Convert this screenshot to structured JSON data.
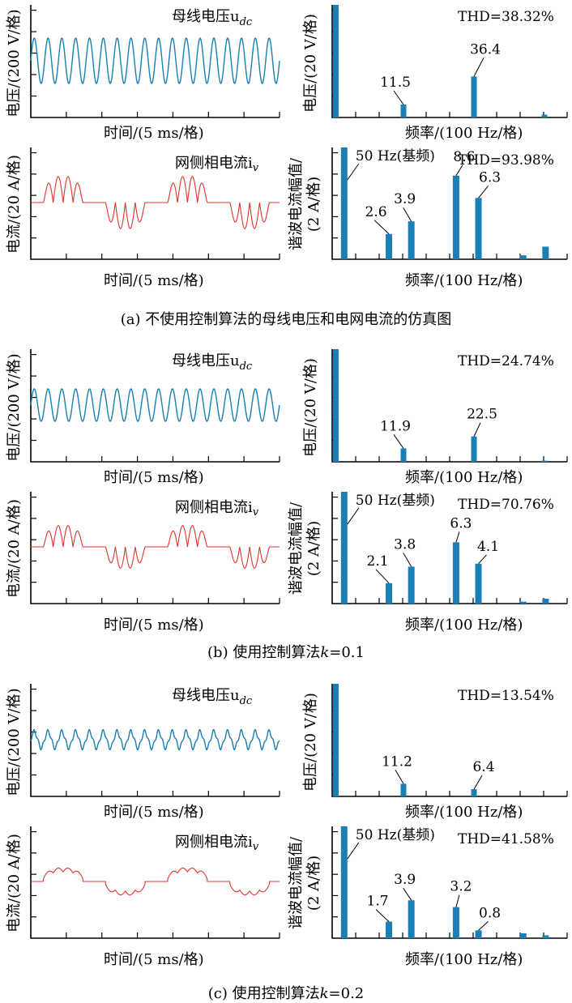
{
  "labels": {
    "time_xlabel": "时间/(5 ms/格)",
    "freq_xlabel": "频率/(100 Hz/格)",
    "voltage_title": "母线电压u",
    "voltage_title_sub": "dc",
    "current_title": "网侧相电流i",
    "current_title_sub": "v",
    "voltage_wave_ylabel": "电压/(200 V/格)",
    "current_wave_ylabel": "电流/(20 A/格)",
    "voltage_spec_ylabel": "电压/(20 V/格)",
    "current_spec_ylabel_line1": "谐波电流幅值/",
    "current_spec_ylabel_line2": "(2 A/格)",
    "fundamental_label": "50 Hz(基频)"
  },
  "captions": {
    "a": "(a) 不使用控制算法的母线电压和电网电流的仿真图",
    "b_prefix": "(b) 使用控制算法",
    "b_k": "k",
    "b_suffix": "=0.1",
    "c_prefix": "(c) 使用控制算法",
    "c_k": "k",
    "c_suffix": "=0.2"
  },
  "chart_data": [
    {
      "panel": "a-voltage-spectrum",
      "type": "bar",
      "thd": "THD=38.32%",
      "unit_per_div": 20,
      "x_unit": "100 Hz",
      "ylim": [
        0,
        100
      ],
      "bars": [
        {
          "x": 0,
          "value": 100
        },
        {
          "x": 3,
          "value": 11.5,
          "label": "11.5"
        },
        {
          "x": 6,
          "value": 36.4,
          "label": "36.4"
        },
        {
          "x": 9,
          "value": 2.5
        }
      ]
    },
    {
      "panel": "a-current-spectrum",
      "type": "bar",
      "thd": "THD=93.98%",
      "unit_per_div": 2,
      "ylim": [
        0,
        11.5
      ],
      "bars": [
        {
          "x": 0.5,
          "value": 11.5,
          "fundamental": true
        },
        {
          "x": 2.5,
          "value": 2.6,
          "label": "2.6"
        },
        {
          "x": 3.5,
          "value": 3.9,
          "label": "3.9"
        },
        {
          "x": 5.5,
          "value": 8.6,
          "label": "8.6"
        },
        {
          "x": 6.5,
          "value": 6.3,
          "label": "6.3"
        },
        {
          "x": 8.5,
          "value": 0.4
        },
        {
          "x": 9.5,
          "value": 1.3
        }
      ]
    },
    {
      "panel": "b-voltage-spectrum",
      "type": "bar",
      "thd": "THD=24.74%",
      "unit_per_div": 20,
      "ylim": [
        0,
        100
      ],
      "bars": [
        {
          "x": 0,
          "value": 100
        },
        {
          "x": 3,
          "value": 11.9,
          "label": "11.9"
        },
        {
          "x": 6,
          "value": 22.5,
          "label": "22.5"
        },
        {
          "x": 9,
          "value": 1
        }
      ]
    },
    {
      "panel": "b-current-spectrum",
      "type": "bar",
      "thd": "THD=70.76%",
      "unit_per_div": 2,
      "ylim": [
        0,
        11.5
      ],
      "bars": [
        {
          "x": 0.5,
          "value": 11.5,
          "fundamental": true
        },
        {
          "x": 2.5,
          "value": 2.1,
          "label": "2.1"
        },
        {
          "x": 3.5,
          "value": 3.8,
          "label": "3.8"
        },
        {
          "x": 5.5,
          "value": 6.3,
          "label": "6.3"
        },
        {
          "x": 6.5,
          "value": 4.1,
          "label": "4.1"
        },
        {
          "x": 8.5,
          "value": 0.2
        },
        {
          "x": 9.5,
          "value": 0.5
        }
      ]
    },
    {
      "panel": "c-voltage-spectrum",
      "type": "bar",
      "thd": "THD=13.54%",
      "unit_per_div": 20,
      "ylim": [
        0,
        100
      ],
      "bars": [
        {
          "x": 0,
          "value": 100
        },
        {
          "x": 3,
          "value": 11.2,
          "label": "11.2"
        },
        {
          "x": 6,
          "value": 6.4,
          "label": "6.4"
        }
      ]
    },
    {
      "panel": "c-current-spectrum",
      "type": "bar",
      "thd": "THD=41.58%",
      "unit_per_div": 2,
      "ylim": [
        0,
        11.5
      ],
      "bars": [
        {
          "x": 0.5,
          "value": 11.5,
          "fundamental": true
        },
        {
          "x": 2.5,
          "value": 1.7,
          "label": "1.7"
        },
        {
          "x": 3.5,
          "value": 3.9,
          "label": "3.9"
        },
        {
          "x": 5.5,
          "value": 3.2,
          "label": "3.2"
        },
        {
          "x": 6.5,
          "value": 0.8,
          "label": "0.8"
        },
        {
          "x": 8.5,
          "value": 0.5
        },
        {
          "x": 9.5,
          "value": 0.3
        }
      ]
    }
  ]
}
